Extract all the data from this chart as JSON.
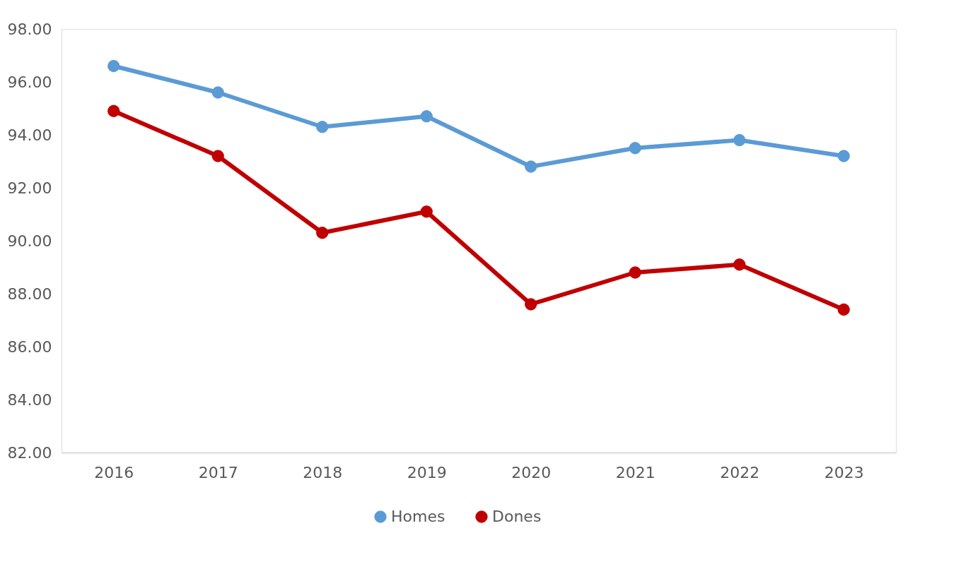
{
  "chart_data": {
    "type": "line",
    "categories": [
      "2016",
      "2017",
      "2018",
      "2019",
      "2020",
      "2021",
      "2022",
      "2023"
    ],
    "series": [
      {
        "name": "Homes",
        "color": "#5b9bd5",
        "values": [
          96.6,
          95.6,
          94.3,
          94.7,
          92.8,
          93.5,
          93.8,
          93.2
        ]
      },
      {
        "name": "Dones",
        "color": "#c00000",
        "values": [
          94.9,
          93.2,
          90.3,
          91.1,
          87.6,
          88.8,
          89.1,
          87.4
        ]
      }
    ],
    "ylim": [
      82,
      98
    ],
    "yticks": [
      {
        "value": 82,
        "label": "82.00"
      },
      {
        "value": 84,
        "label": "84.00"
      },
      {
        "value": 86,
        "label": "86.00"
      },
      {
        "value": 88,
        "label": "88.00"
      },
      {
        "value": 90,
        "label": "90.00"
      },
      {
        "value": 92,
        "label": "92.00"
      },
      {
        "value": 94,
        "label": "94.00"
      },
      {
        "value": 96,
        "label": "96.00"
      },
      {
        "value": 98,
        "label": "98.00"
      }
    ],
    "grid": false,
    "legend": "bottom",
    "marker": "circle",
    "line_style": "solid"
  }
}
